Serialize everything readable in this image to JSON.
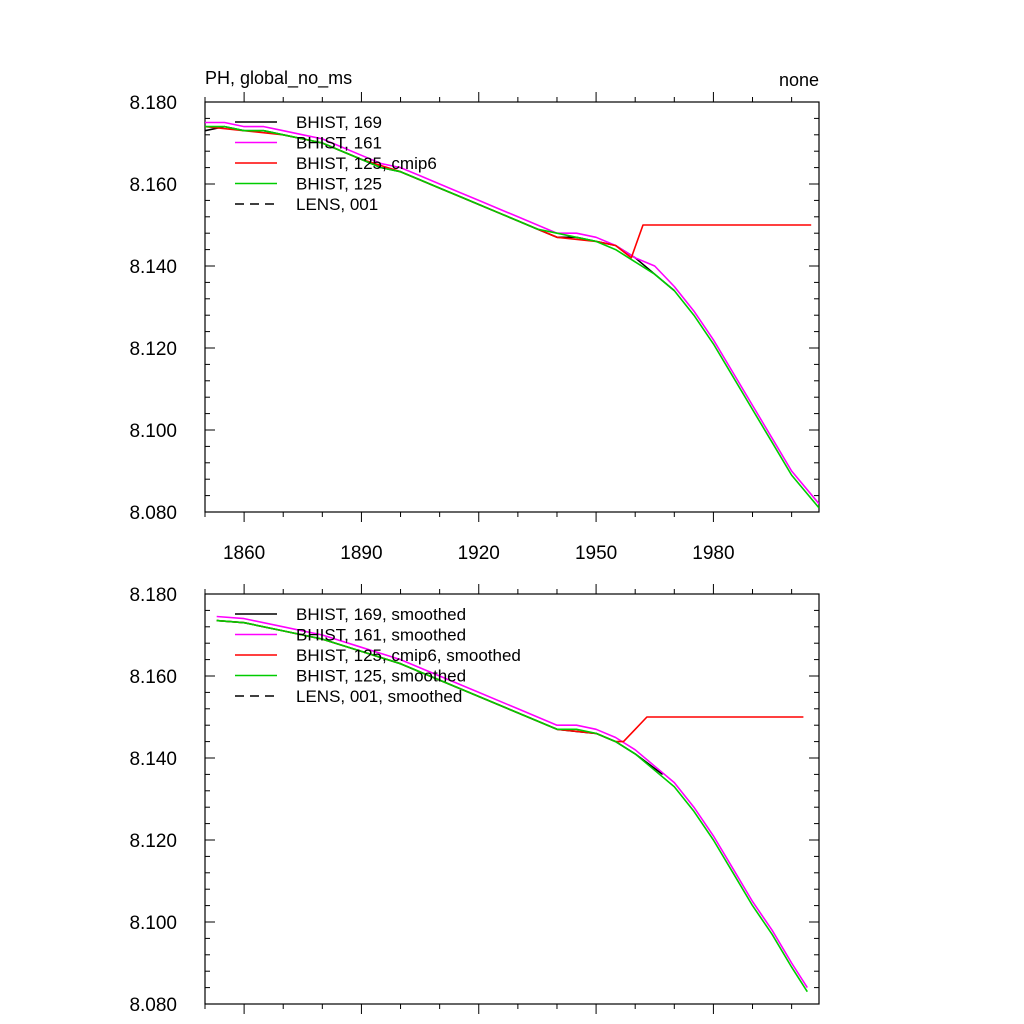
{
  "chart_data": [
    {
      "type": "line",
      "title_left": "PH, global_no_ms",
      "title_right": "none",
      "xlim": [
        1850,
        2007
      ],
      "ylim": [
        8.08,
        8.18
      ],
      "xticks": [
        1860,
        1890,
        1920,
        1950,
        1980
      ],
      "yticks": [
        8.08,
        8.1,
        8.12,
        8.14,
        8.16,
        8.18
      ],
      "ytick_labels": [
        "8.080",
        "8.100",
        "8.120",
        "8.140",
        "8.160",
        "8.180"
      ],
      "xtick_labels": [
        "1860",
        "1890",
        "1920",
        "1950",
        "1980"
      ],
      "legend_position": "top-left",
      "series": [
        {
          "name": "BHIST, 169",
          "color": "#000000",
          "dash": "solid",
          "x": [
            1850,
            1855,
            1860,
            1865,
            1870,
            1875,
            1880,
            1885,
            1890,
            1895,
            1900,
            1905,
            1910,
            1915,
            1920,
            1925,
            1930,
            1935,
            1940,
            1945,
            1950,
            1955,
            1960,
            1965,
            1970
          ],
          "y": [
            8.173,
            8.174,
            8.173,
            8.173,
            8.172,
            8.171,
            8.17,
            8.168,
            8.166,
            8.164,
            8.163,
            8.161,
            8.159,
            8.157,
            8.155,
            8.153,
            8.151,
            8.149,
            8.147,
            8.147,
            8.146,
            8.145,
            8.142,
            8.138,
            8.134
          ]
        },
        {
          "name": "BHIST, 161",
          "color": "#ff00ff",
          "dash": "solid",
          "x": [
            1850,
            1855,
            1860,
            1865,
            1870,
            1875,
            1880,
            1885,
            1890,
            1895,
            1900,
            1905,
            1910,
            1915,
            1920,
            1925,
            1930,
            1935,
            1940,
            1945,
            1950,
            1955,
            1960,
            1965,
            1970,
            1975,
            1980,
            1985,
            1990,
            1995,
            2000,
            2007
          ],
          "y": [
            8.175,
            8.175,
            8.174,
            8.174,
            8.173,
            8.172,
            8.171,
            8.169,
            8.167,
            8.165,
            8.164,
            8.162,
            8.16,
            8.158,
            8.156,
            8.154,
            8.152,
            8.15,
            8.148,
            8.148,
            8.147,
            8.145,
            8.142,
            8.14,
            8.135,
            8.129,
            8.122,
            8.114,
            8.106,
            8.098,
            8.09,
            8.082
          ]
        },
        {
          "name": "BHIST, 125, cmip6",
          "color": "#ff0000",
          "dash": "solid",
          "x": [
            1850,
            1860,
            1870,
            1880,
            1890,
            1900,
            1910,
            1920,
            1930,
            1940,
            1950,
            1955,
            1959,
            1962,
            1970,
            1980,
            1990,
            2000,
            2005
          ],
          "y": [
            8.174,
            8.173,
            8.172,
            8.17,
            8.166,
            8.163,
            8.159,
            8.155,
            8.151,
            8.147,
            8.146,
            8.145,
            8.142,
            8.15,
            8.15,
            8.15,
            8.15,
            8.15,
            8.15
          ]
        },
        {
          "name": "BHIST, 125",
          "color": "#00cc00",
          "dash": "solid",
          "x": [
            1850,
            1855,
            1860,
            1865,
            1870,
            1875,
            1880,
            1885,
            1890,
            1895,
            1900,
            1905,
            1910,
            1915,
            1920,
            1925,
            1930,
            1935,
            1940,
            1945,
            1950,
            1955,
            1960,
            1965,
            1970,
            1975,
            1980,
            1985,
            1990,
            1995,
            2000,
            2007
          ],
          "y": [
            8.174,
            8.174,
            8.173,
            8.173,
            8.172,
            8.171,
            8.17,
            8.168,
            8.166,
            8.164,
            8.163,
            8.161,
            8.159,
            8.157,
            8.155,
            8.153,
            8.151,
            8.149,
            8.148,
            8.147,
            8.146,
            8.144,
            8.141,
            8.138,
            8.134,
            8.128,
            8.121,
            8.113,
            8.105,
            8.097,
            8.089,
            8.081
          ]
        },
        {
          "name": "LENS, 001",
          "color": "#000000",
          "dash": "dashed",
          "x": [],
          "y": []
        }
      ]
    },
    {
      "type": "line",
      "title_left": "",
      "title_right": "",
      "xlim": [
        1850,
        2007
      ],
      "ylim": [
        8.08,
        8.18
      ],
      "xticks": [
        1860,
        1890,
        1920,
        1950,
        1980
      ],
      "yticks": [
        8.08,
        8.1,
        8.12,
        8.14,
        8.16,
        8.18
      ],
      "ytick_labels": [
        "8.080",
        "8.100",
        "8.120",
        "8.140",
        "8.160",
        "8.180"
      ],
      "xtick_labels": [],
      "legend_position": "top-left",
      "series": [
        {
          "name": "BHIST, 169, smoothed",
          "color": "#000000",
          "dash": "solid",
          "x": [
            1853,
            1860,
            1870,
            1880,
            1890,
            1900,
            1910,
            1920,
            1930,
            1940,
            1945,
            1950,
            1955,
            1960,
            1967
          ],
          "y": [
            8.1735,
            8.173,
            8.171,
            8.169,
            8.166,
            8.163,
            8.159,
            8.155,
            8.151,
            8.147,
            8.1465,
            8.146,
            8.144,
            8.141,
            8.136
          ]
        },
        {
          "name": "BHIST, 161, smoothed",
          "color": "#ff00ff",
          "dash": "solid",
          "x": [
            1853,
            1860,
            1870,
            1880,
            1890,
            1900,
            1910,
            1920,
            1930,
            1940,
            1945,
            1950,
            1955,
            1960,
            1965,
            1970,
            1975,
            1980,
            1985,
            1990,
            1995,
            2000,
            2004
          ],
          "y": [
            8.1745,
            8.174,
            8.172,
            8.17,
            8.167,
            8.164,
            8.16,
            8.156,
            8.152,
            8.148,
            8.148,
            8.147,
            8.145,
            8.142,
            8.138,
            8.134,
            8.128,
            8.121,
            8.113,
            8.105,
            8.098,
            8.09,
            8.084
          ]
        },
        {
          "name": "BHIST, 125, cmip6, smoothed",
          "color": "#ff0000",
          "dash": "solid",
          "x": [
            1853,
            1860,
            1870,
            1880,
            1890,
            1900,
            1910,
            1920,
            1930,
            1940,
            1950,
            1955,
            1957,
            1960,
            1963,
            1970,
            1980,
            1990,
            2000,
            2003
          ],
          "y": [
            8.1735,
            8.173,
            8.171,
            8.169,
            8.166,
            8.163,
            8.159,
            8.155,
            8.151,
            8.147,
            8.146,
            8.144,
            8.144,
            8.147,
            8.15,
            8.15,
            8.15,
            8.15,
            8.15,
            8.15
          ]
        },
        {
          "name": "BHIST, 125, smoothed",
          "color": "#00cc00",
          "dash": "solid",
          "x": [
            1853,
            1860,
            1870,
            1880,
            1890,
            1900,
            1910,
            1920,
            1930,
            1940,
            1945,
            1950,
            1955,
            1960,
            1965,
            1970,
            1975,
            1980,
            1985,
            1990,
            1995,
            2000,
            2004
          ],
          "y": [
            8.1735,
            8.173,
            8.171,
            8.169,
            8.166,
            8.163,
            8.159,
            8.155,
            8.151,
            8.147,
            8.147,
            8.146,
            8.144,
            8.141,
            8.137,
            8.133,
            8.127,
            8.12,
            8.112,
            8.104,
            8.097,
            8.089,
            8.083
          ]
        },
        {
          "name": "LENS, 001, smoothed",
          "color": "#000000",
          "dash": "dashed",
          "x": [],
          "y": []
        }
      ]
    }
  ]
}
